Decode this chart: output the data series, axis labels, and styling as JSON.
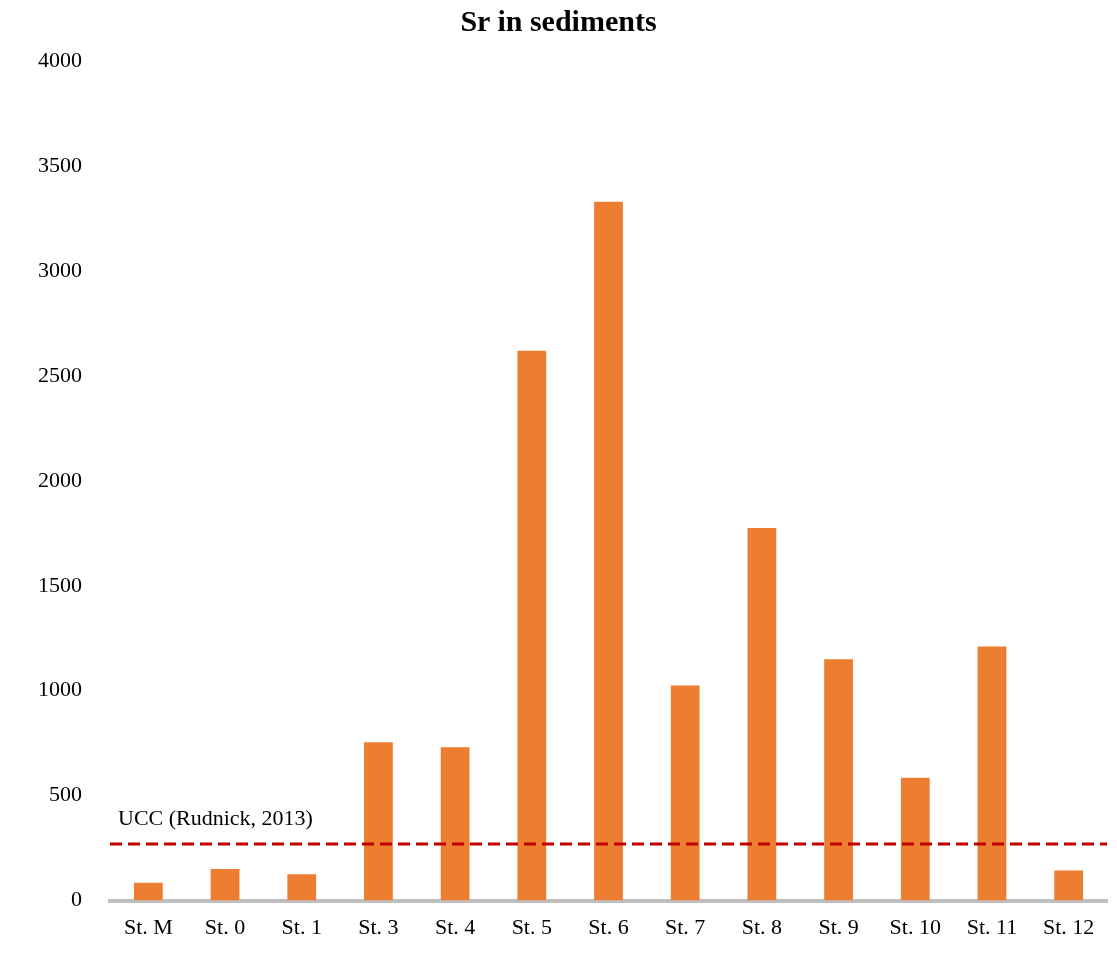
{
  "chart_data": {
    "type": "bar",
    "title": "Sr in sediments",
    "categories": [
      "St. M",
      "St. 0",
      "St. 1",
      "St. 3",
      "St. 4",
      "St. 5",
      "St. 6",
      "St. 7",
      "St. 8",
      "St. 9",
      "St. 10",
      "St. 11",
      "St. 12"
    ],
    "values": [
      85,
      150,
      125,
      755,
      730,
      2620,
      3330,
      1025,
      1775,
      1150,
      585,
      1210,
      143
    ],
    "color": "#ed7d31",
    "ylim": [
      0,
      4000
    ],
    "yticks": [
      0,
      500,
      1000,
      1500,
      2000,
      2500,
      3000,
      3500,
      4000
    ],
    "grid": false,
    "legend": false,
    "ref_lines": [
      {
        "axis": "y",
        "value": 270,
        "label": "UCC (Rudnick, 2013)",
        "color": "#c00000",
        "line_style": "dashed"
      }
    ]
  }
}
